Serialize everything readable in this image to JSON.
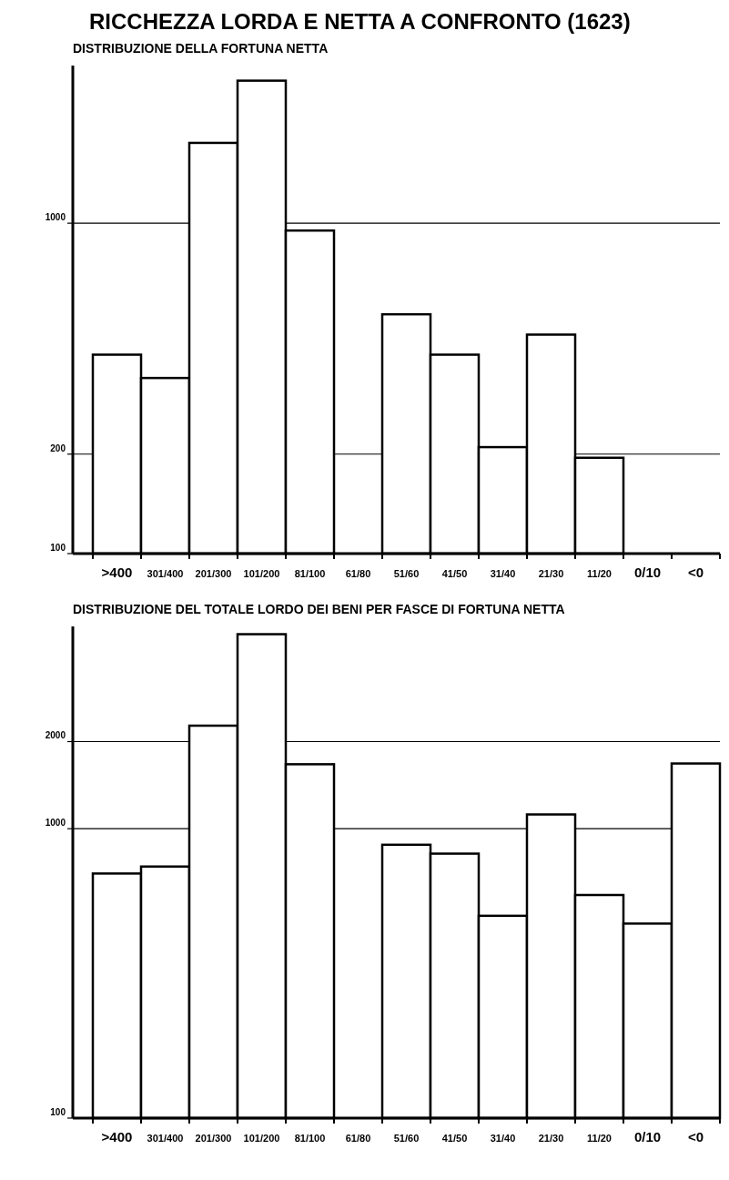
{
  "chart_data": [
    {
      "type": "bar",
      "title": "RICCHEZZA LORDA E NETTA A CONFRONTO (1623)",
      "subtitle": "DISTRIBUZIONE DELLA FORTUNA NETTA",
      "categories": [
        ">400",
        "301/400",
        "201/300",
        "101/200",
        "81/100",
        "61/80",
        "51/60",
        "41/50",
        "31/40",
        "21/30",
        "11/20",
        "0/10",
        "<0"
      ],
      "values": [
        400,
        340,
        1750,
        2700,
        950,
        null,
        530,
        400,
        210,
        460,
        195,
        null,
        null
      ],
      "color": "#ffffff",
      "log": "y",
      "ylim": [
        100,
        3000
      ],
      "yticks": [
        100,
        200,
        1000
      ],
      "grid": "y"
    },
    {
      "type": "bar",
      "title": "DISTRIBUZIONE DEL TOTALE LORDO DEI BENI PER FASCE DI FORTUNA NETTA",
      "categories": [
        ">400",
        "301/400",
        "201/300",
        "101/200",
        "81/100",
        "61/80",
        "51/60",
        "41/50",
        "31/40",
        "21/30",
        "11/20",
        "0/10",
        "<0"
      ],
      "values": [
        700,
        740,
        2270,
        4700,
        1670,
        null,
        880,
        820,
        500,
        1120,
        590,
        470,
        1680
      ],
      "color": "#ffffff",
      "log": "y",
      "ylim": [
        100,
        5000
      ],
      "yticks": [
        100,
        1000,
        2000
      ],
      "grid": "y"
    }
  ]
}
